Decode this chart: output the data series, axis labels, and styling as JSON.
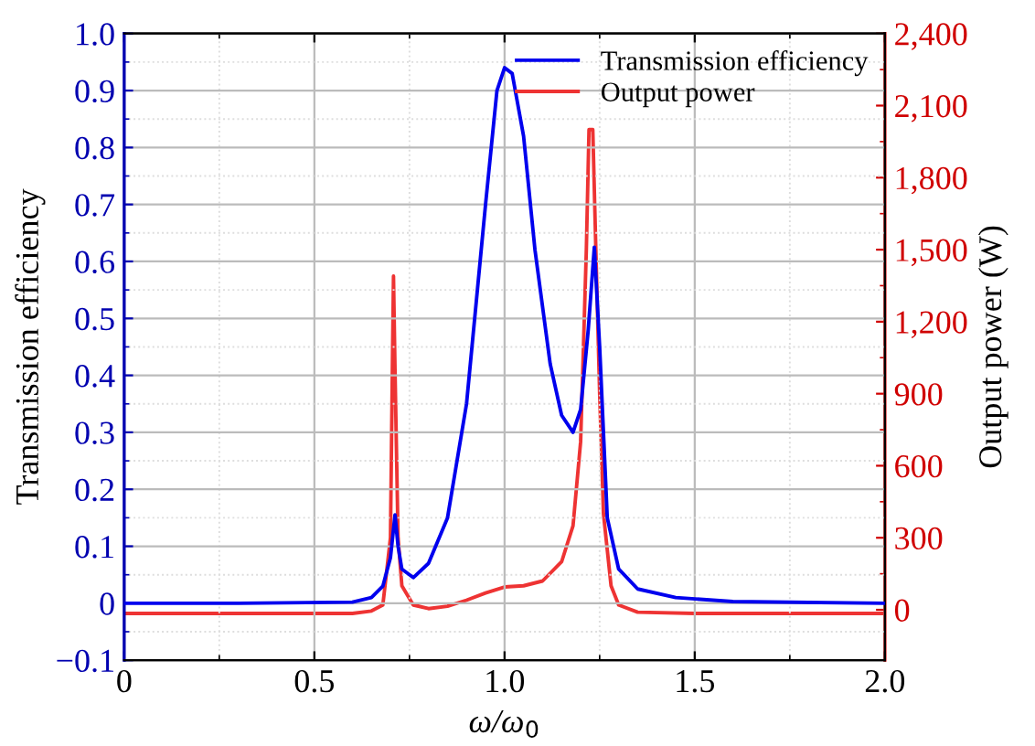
{
  "chart_data": {
    "type": "line",
    "xlabel": "ω/ω$_{0}$",
    "ylabel": "Transmission efficiency",
    "y2label": "Output power (W)",
    "xlim": [
      0,
      2.0
    ],
    "xticks": [
      0,
      0.5,
      {
        "value": 1.0,
        "label": "1.0"
      },
      1.5,
      {
        "value": 2.0,
        "label": "2.0"
      }
    ],
    "ylim": [
      -0.1,
      1.0
    ],
    "yticks": [
      {
        "value": -0.1,
        "label": "−0.1"
      },
      0,
      0.1,
      0.2,
      0.3,
      0.4,
      0.5,
      0.6,
      0.7,
      0.8,
      0.9,
      {
        "value": 1.0,
        "label": "1.0"
      }
    ],
    "y2lim": [
      -210,
      2400
    ],
    "y2ticks": [
      0,
      300,
      600,
      900,
      {
        "value": 1200,
        "label": "1,200"
      },
      {
        "value": 1500,
        "label": "1,500"
      },
      {
        "value": 1800,
        "label": "1,800"
      },
      {
        "value": 2100,
        "label": "2,100"
      },
      {
        "value": 2400,
        "label": "2,400"
      }
    ],
    "grid": true,
    "legend": "top right",
    "marker": "none",
    "line_style": "solid",
    "series": [
      {
        "name": "Transmission efficiency",
        "color": "#0000ee",
        "x": [
          0,
          0.3,
          0.6,
          0.65,
          0.68,
          0.7,
          0.712,
          0.72,
          0.73,
          0.76,
          0.8,
          0.85,
          0.9,
          0.95,
          0.98,
          1.0,
          1.02,
          1.05,
          1.08,
          1.12,
          1.15,
          1.18,
          1.2,
          1.22,
          1.236,
          1.25,
          1.27,
          1.3,
          1.35,
          1.45,
          1.6,
          2.0
        ],
        "values": [
          0,
          0,
          0.002,
          0.01,
          0.03,
          0.08,
          0.155,
          0.1,
          0.06,
          0.045,
          0.07,
          0.15,
          0.35,
          0.7,
          0.9,
          0.94,
          0.93,
          0.82,
          0.62,
          0.42,
          0.33,
          0.3,
          0.34,
          0.48,
          0.625,
          0.45,
          0.15,
          0.06,
          0.025,
          0.01,
          0.003,
          0
        ]
      },
      {
        "name": "Output power",
        "color": "#ee3333",
        "axis": "y2",
        "x": [
          0,
          0.3,
          0.6,
          0.65,
          0.68,
          0.7,
          0.705,
          0.708,
          0.712,
          0.72,
          0.73,
          0.76,
          0.8,
          0.85,
          0.9,
          0.95,
          1.0,
          1.05,
          1.1,
          1.15,
          1.18,
          1.2,
          1.215,
          1.222,
          1.232,
          1.24,
          1.25,
          1.26,
          1.28,
          1.3,
          1.35,
          1.5,
          2.0
        ],
        "values": [
          -15,
          -15,
          -15,
          -5,
          20,
          300,
          1000,
          1390,
          1000,
          300,
          100,
          20,
          5,
          15,
          40,
          70,
          95,
          100,
          120,
          200,
          350,
          700,
          1500,
          2000,
          2000,
          1500,
          900,
          400,
          100,
          20,
          -10,
          -15,
          -15
        ]
      }
    ]
  }
}
